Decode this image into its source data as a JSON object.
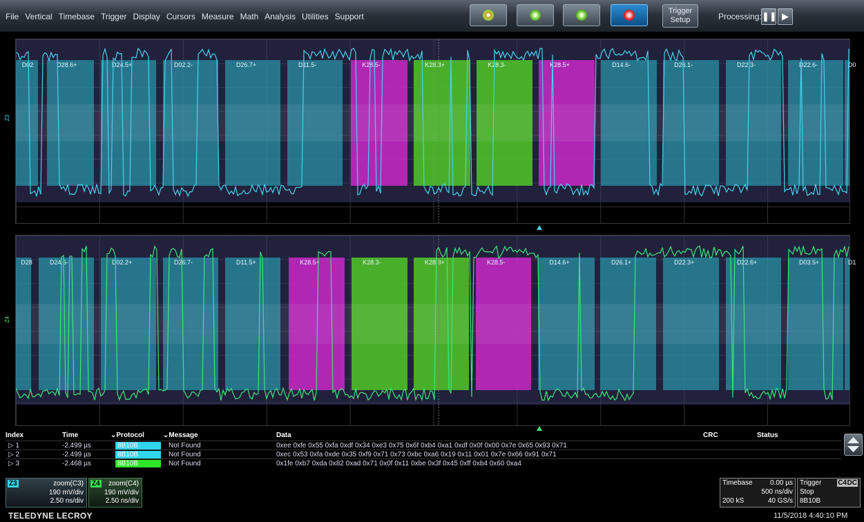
{
  "menu": [
    "File",
    "Vertical",
    "Timebase",
    "Trigger",
    "Display",
    "Cursors",
    "Measure",
    "Math",
    "Analysis",
    "Utilities",
    "Support"
  ],
  "toolbar": {
    "trigger_setup": [
      "Trigger",
      "Setup"
    ],
    "processing_label": "Processing:",
    "pause_icon": "pause-icon",
    "play_icon": "play-icon"
  },
  "trace_z3": {
    "axis_label": "Z3",
    "color": "#45d3ee",
    "segments": [
      {
        "label": "D02",
        "type": "data"
      },
      {
        "label": "D28.6+",
        "type": "data"
      },
      {
        "label": "D24.5+",
        "type": "data"
      },
      {
        "label": "D02.2-",
        "type": "data"
      },
      {
        "label": "D26.7+",
        "type": "data"
      },
      {
        "label": "D11.5-",
        "type": "data"
      },
      {
        "label": "K28.5-",
        "type": "k-magenta"
      },
      {
        "label": "K28.3+",
        "type": "k-green"
      },
      {
        "label": "K28.3-",
        "type": "k-green"
      },
      {
        "label": "K28.5+",
        "type": "k-magenta"
      },
      {
        "label": "D14.6-",
        "type": "data"
      },
      {
        "label": "D26.1-",
        "type": "data"
      },
      {
        "label": "D22.3-",
        "type": "data"
      },
      {
        "label": "D22.6-",
        "type": "data"
      },
      {
        "label": "D0",
        "type": "data"
      }
    ]
  },
  "trace_z4": {
    "axis_label": "Z4",
    "color": "#3ce87a",
    "segments": [
      {
        "label": "D28",
        "type": "data"
      },
      {
        "label": "D24.5-",
        "type": "data"
      },
      {
        "label": "D02.2+",
        "type": "data"
      },
      {
        "label": "D26.7-",
        "type": "data"
      },
      {
        "label": "D11.5+",
        "type": "data"
      },
      {
        "label": "K28.5+",
        "type": "k-magenta"
      },
      {
        "label": "K28.3-",
        "type": "k-green"
      },
      {
        "label": "K28.3+",
        "type": "k-green"
      },
      {
        "label": "K28.5-",
        "type": "k-magenta"
      },
      {
        "label": "D14.6+",
        "type": "data"
      },
      {
        "label": "D26.1+",
        "type": "data"
      },
      {
        "label": "D22.3+",
        "type": "data"
      },
      {
        "label": "D22.6+",
        "type": "data"
      },
      {
        "label": "D03.5+",
        "type": "data"
      },
      {
        "label": "D1",
        "type": "data"
      }
    ]
  },
  "table": {
    "headers": {
      "index": "Index",
      "time": "Time",
      "protocol": "Protocol",
      "message": "Message",
      "data": "Data",
      "crc": "CRC",
      "status": "Status"
    },
    "rows": [
      {
        "index": "▷ 1",
        "time": "-2.499 µs",
        "protocol": "8B10B",
        "protocol_color": "#2fd6ee",
        "message": "Not Found",
        "data": "0xee 0xfe 0x55 0xfa 0xdf 0x34 0xe3 0x75 0x6f 0xb4 0xa1 0xdf 0x0f 0x00 0x7e 0x65 0x93 0x71",
        "crc": "",
        "status": ""
      },
      {
        "index": "▷ 2",
        "time": "-2.499 µs",
        "protocol": "8B10B",
        "protocol_color": "#2fd6ee",
        "message": "Not Found",
        "data": "0xec 0x53 0xfa 0xde 0x35 0xf9 0x71 0x73 0xbc 0xa6 0x19 0x11 0x01 0x7e 0x66 0x91 0x71",
        "crc": "",
        "status": ""
      },
      {
        "index": "▷ 3",
        "time": "-2.468 µs",
        "protocol": "8B10B",
        "protocol_color": "#2ee52a",
        "message": "Not Found",
        "data": "0x1fe 0xb7 0xda 0x82 0xad 0x71 0x0f 0x11 0xbe 0x3f 0x45 0xff 0xb4 0x60 0xa4",
        "crc": "",
        "status": ""
      }
    ]
  },
  "descriptors": [
    {
      "tag": "Z3",
      "tag_color": "#2fd6ee",
      "source": "zoom(C3)",
      "vdiv": "190 mV/div",
      "tdiv": "2.50 ns/div"
    },
    {
      "tag": "Z4",
      "tag_color": "#35e04a",
      "source": "zoom(C4)",
      "vdiv": "190 mV/div",
      "tdiv": "2.50 ns/div"
    }
  ],
  "timebase": {
    "label": "Timebase",
    "delay": "0.00 µs",
    "tdiv": "500 ns/div",
    "samples": "200 kS",
    "rate": "40 GS/s"
  },
  "trigger": {
    "label": "Trigger",
    "source": "C4",
    "coupling": "DC",
    "mode": "Stop",
    "type": "8B10B"
  },
  "brand": "TELEDYNE LECROY",
  "clock": "11/5/2018 4:40:10 PM"
}
